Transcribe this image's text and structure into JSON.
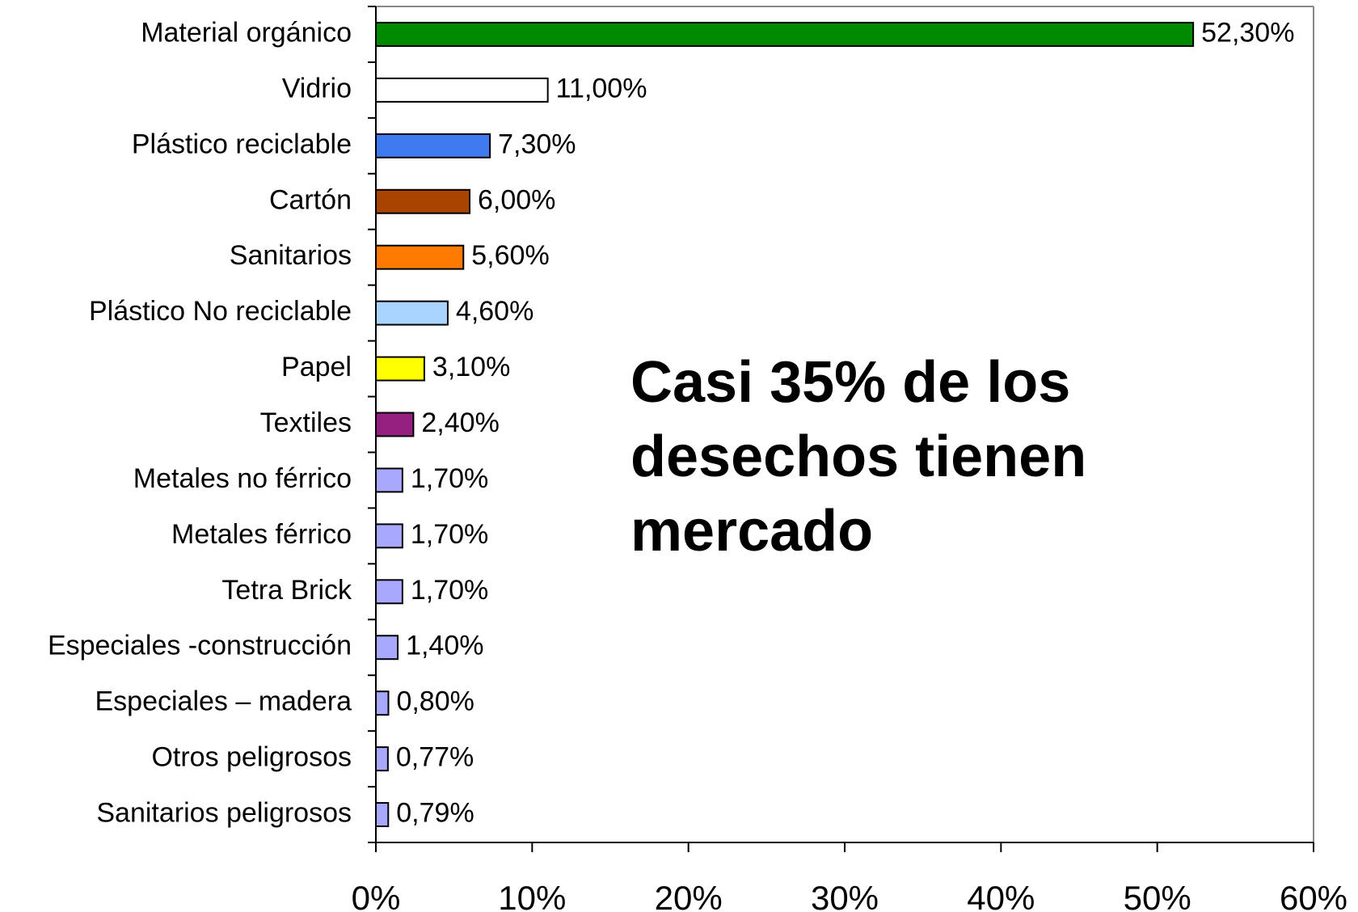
{
  "chart_data": {
    "type": "barh",
    "categories": [
      "Material orgánico",
      "Vidrio",
      "Plástico reciclable",
      "Cartón",
      "Sanitarios",
      "Plástico No reciclable",
      "Papel",
      "Textiles",
      "Metales no férrico",
      "Metales férrico",
      "Tetra Brick",
      "Especiales -construcción",
      "Especiales – madera",
      "Otros peligrosos",
      "Sanitarios peligrosos"
    ],
    "values": [
      52.3,
      11.0,
      7.3,
      6.0,
      5.6,
      4.6,
      3.1,
      2.4,
      1.7,
      1.7,
      1.7,
      1.4,
      0.8,
      0.77,
      0.79
    ],
    "value_labels": [
      "52,30%",
      "11,00%",
      "7,30%",
      "6,00%",
      "5,60%",
      "4,60%",
      "3,10%",
      "2,40%",
      "1,70%",
      "1,70%",
      "1,70%",
      "1,40%",
      "0,80%",
      "0,77%",
      "0,79%"
    ],
    "colors": [
      "#008a00",
      "#ffffff",
      "#3f7af0",
      "#a84400",
      "#ff7a00",
      "#a9d4ff",
      "#ffff00",
      "#962080",
      "#a8a8ff",
      "#a8a8ff",
      "#a8a8ff",
      "#a8a8ff",
      "#a8a8ff",
      "#a8a8ff",
      "#a8a8ff"
    ],
    "xlim": [
      0,
      60
    ],
    "xticks": [
      {
        "value": 0,
        "label": "0%"
      },
      {
        "value": 10,
        "label": "10%"
      },
      {
        "value": 20,
        "label": "20%"
      },
      {
        "value": 30,
        "label": "30%"
      },
      {
        "value": 40,
        "label": "40%"
      },
      {
        "value": 50,
        "label": "50%"
      },
      {
        "value": 60,
        "label": "60%"
      }
    ],
    "annotation": [
      "Casi 35% de los",
      "desechos tienen",
      "mercado"
    ]
  }
}
